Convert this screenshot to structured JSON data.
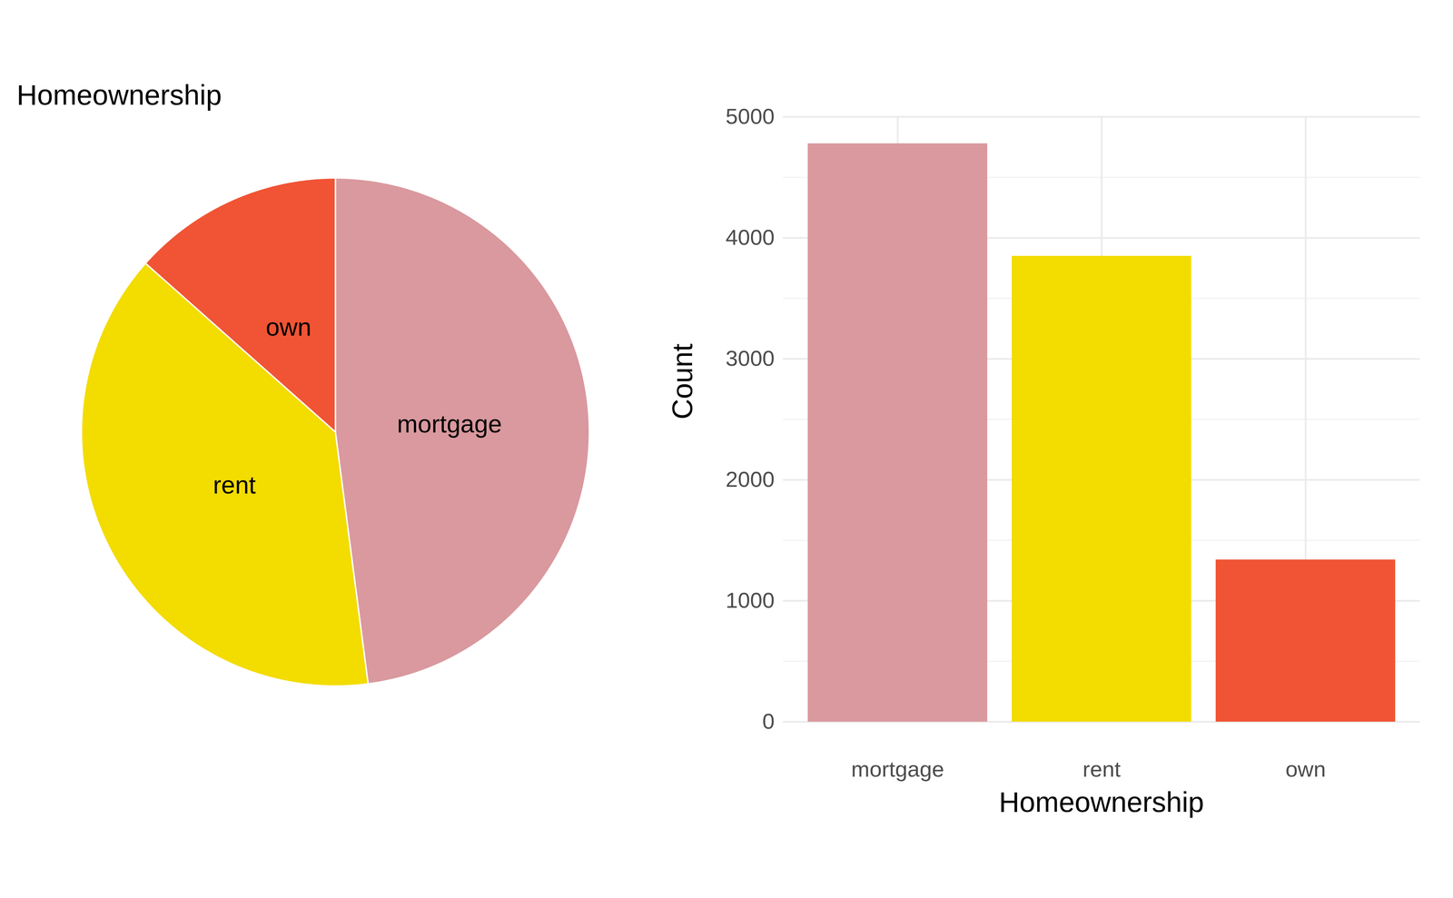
{
  "chart_data": [
    {
      "type": "pie",
      "title": "Homeownership",
      "categories": [
        "mortgage",
        "rent",
        "own"
      ],
      "values": [
        4780,
        3850,
        1340
      ],
      "colors": [
        "#D9999E",
        "#F3DC00",
        "#F05434"
      ]
    },
    {
      "type": "bar",
      "xlabel": "Homeownership",
      "ylabel": "Count",
      "categories": [
        "mortgage",
        "rent",
        "own"
      ],
      "values": [
        4780,
        3850,
        1340
      ],
      "colors": [
        "#D9999E",
        "#F3DC00",
        "#F05434"
      ],
      "ylim": [
        0,
        5000
      ],
      "yticks": [
        0,
        1000,
        2000,
        3000,
        4000,
        5000
      ],
      "grid": true
    }
  ]
}
